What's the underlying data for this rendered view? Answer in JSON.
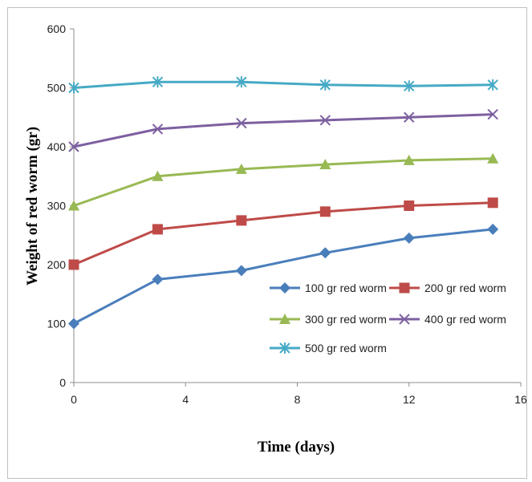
{
  "chart_data": {
    "type": "line",
    "title": "",
    "xlabel": "Time (days)",
    "ylabel": "Weight of red worm (gr)",
    "xlim": [
      0,
      16
    ],
    "ylim": [
      0,
      600
    ],
    "xticks": [
      0,
      4,
      8,
      12,
      16
    ],
    "yticks": [
      0,
      100,
      200,
      300,
      400,
      500,
      600
    ],
    "x": [
      0,
      3,
      6,
      9,
      12,
      15
    ],
    "grid": false,
    "legend_position": "bottom-right",
    "series": [
      {
        "name": "100 gr red worm",
        "values": [
          100,
          175,
          190,
          220,
          245,
          260
        ],
        "color": "#4a7ebb",
        "marker": "diamond"
      },
      {
        "name": "200 gr red worm",
        "values": [
          200,
          260,
          275,
          290,
          300,
          305
        ],
        "color": "#be4b48",
        "marker": "square"
      },
      {
        "name": "300 gr red worm",
        "values": [
          300,
          350,
          362,
          370,
          377,
          380
        ],
        "color": "#98b954",
        "marker": "triangle"
      },
      {
        "name": "400 gr red worm",
        "values": [
          400,
          430,
          440,
          445,
          450,
          455
        ],
        "color": "#7d60a0",
        "marker": "x"
      },
      {
        "name": "500 gr red worm",
        "values": [
          500,
          510,
          510,
          505,
          503,
          505
        ],
        "color": "#46aac5",
        "marker": "star"
      }
    ]
  }
}
